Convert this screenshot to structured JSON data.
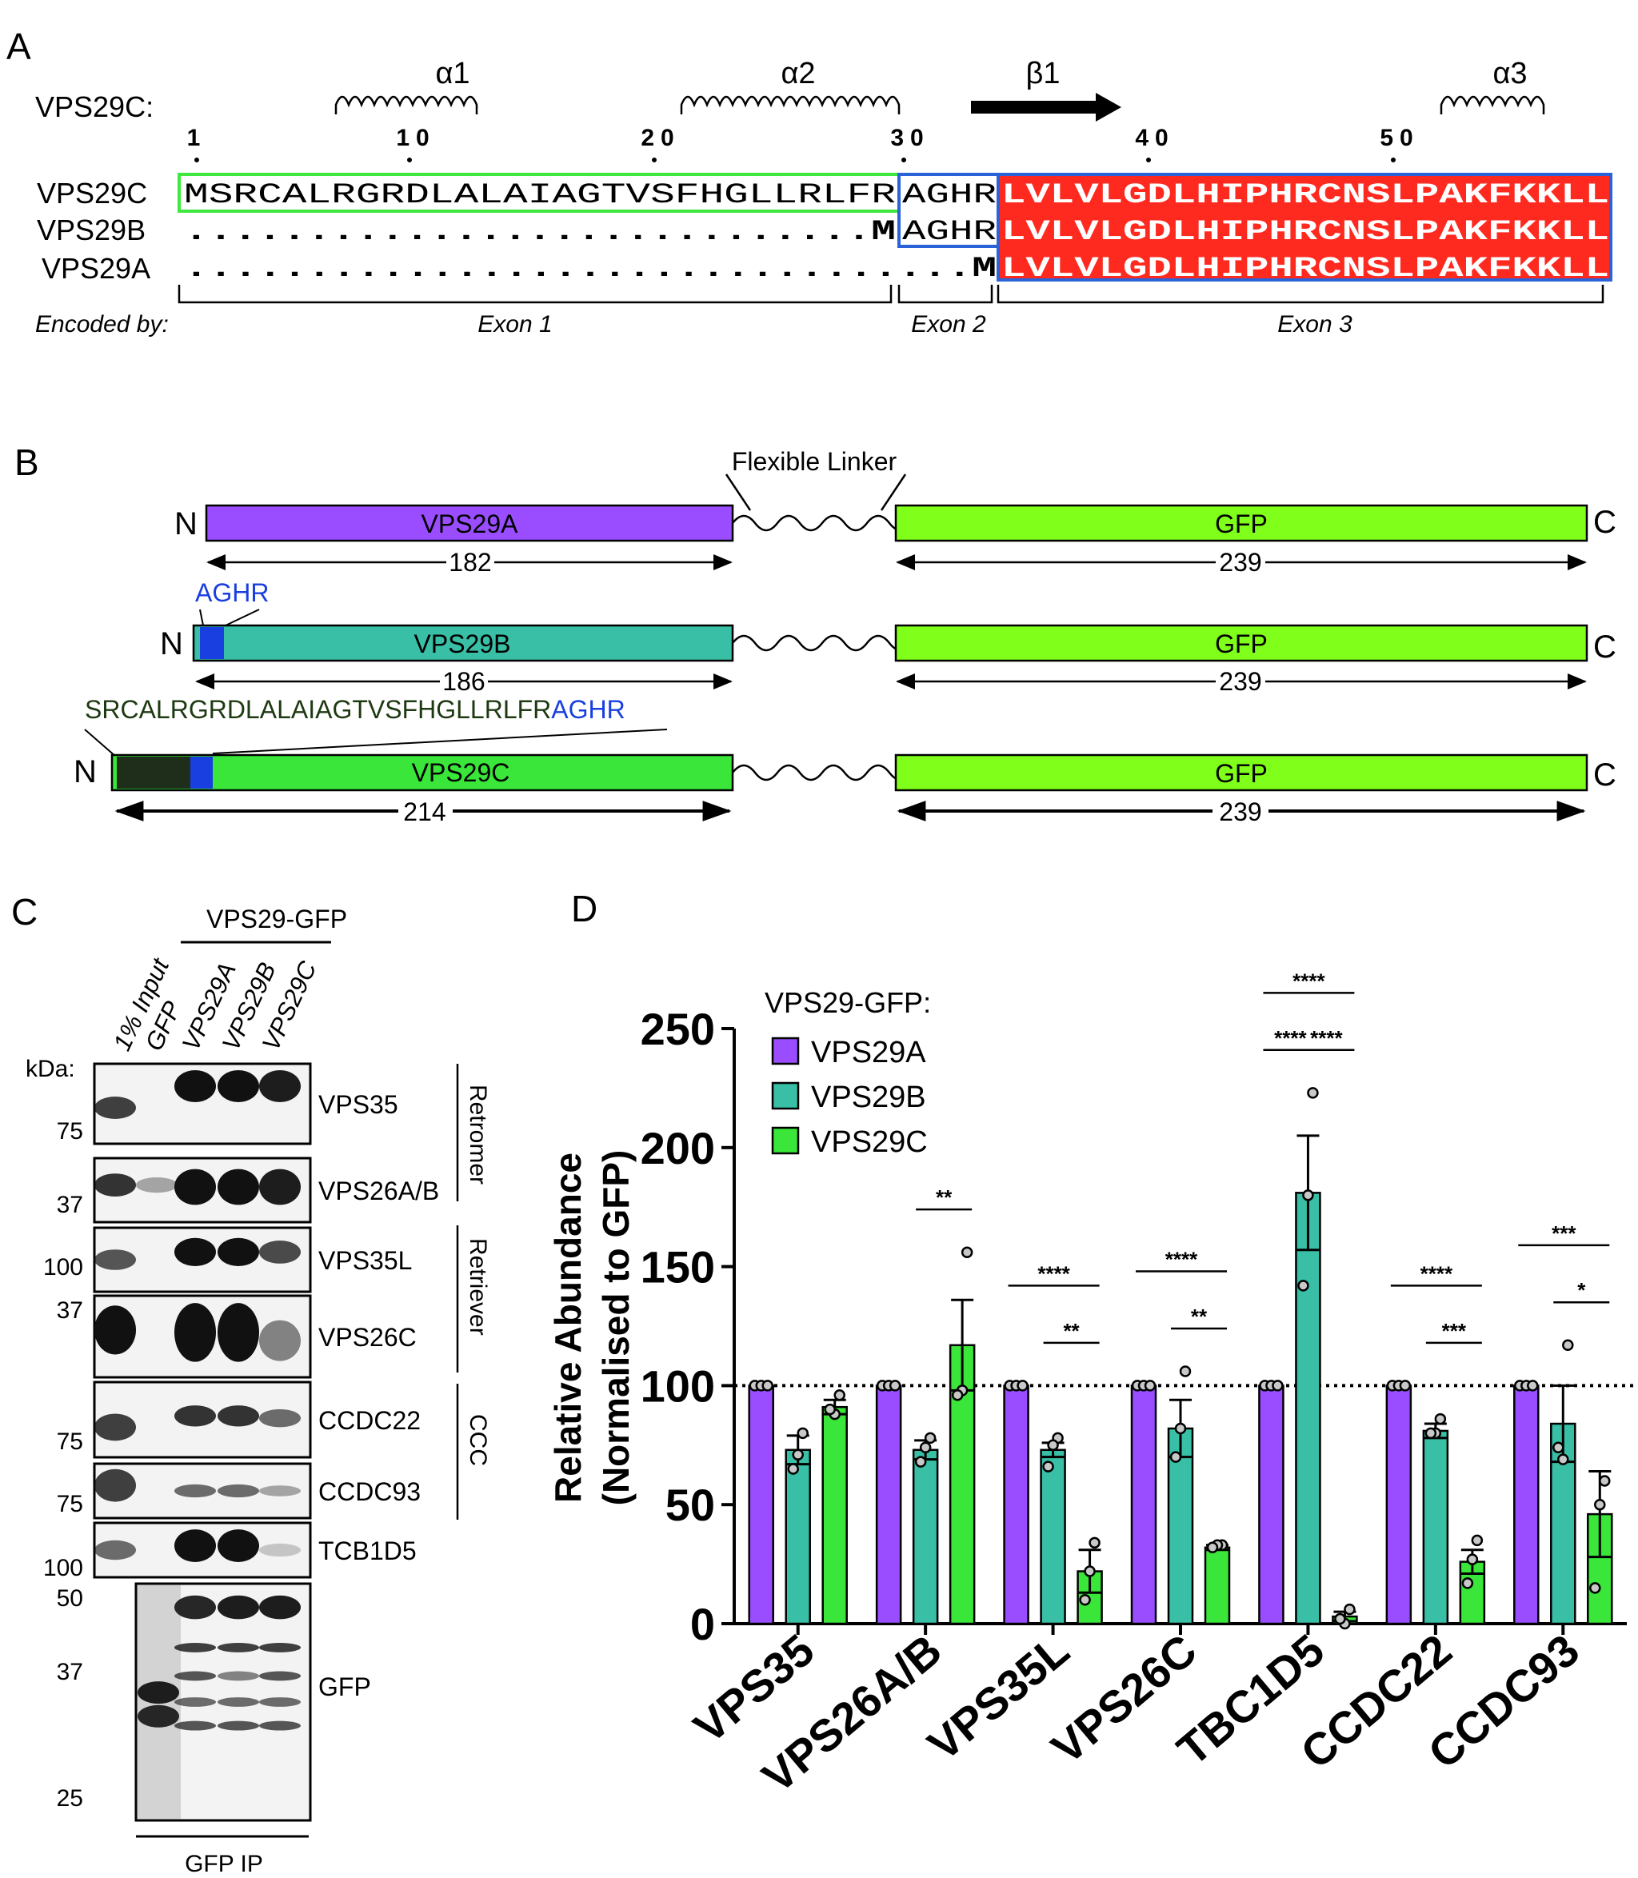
{
  "colors": {
    "purple": "#9a4dff",
    "teal": "#38bfa6",
    "green": "#39e639",
    "gfp": "#7fff1a",
    "blue": "#1a3fe0",
    "red": "#ff2a1f",
    "dark_green": "#1e2e1a",
    "outline_green": "#3ee83e",
    "outline_blue": "#2a62d8"
  },
  "panel_a": {
    "label": "A",
    "row_title": "VPS29C:",
    "structure": [
      {
        "name": "α1",
        "kind": "helix"
      },
      {
        "name": "α2",
        "kind": "helix"
      },
      {
        "name": "β1",
        "kind": "strand"
      },
      {
        "name": "α3",
        "kind": "helix"
      }
    ],
    "positions": [
      "1",
      "10",
      "20",
      "30",
      "40",
      "50"
    ],
    "rows": [
      {
        "name": "VPS29C",
        "exon1": "MSRCALRGRDLALAIAGTVSFHGLLRLFR",
        "exon2": "AGHR",
        "exon3": "LVLVLGDLHIPHRCNSLPAKFKKLL"
      },
      {
        "name": "VPS29B",
        "exon1": "............................M",
        "exon2": "AGHR",
        "exon3": "LVLVLGDLHIPHRCNSLPAKFKKLL"
      },
      {
        "name": "VPS29A",
        "exon1": "................................M",
        "exon2": "",
        "exon3": "LVLVLGDLHIPHRCNSLPAKFKKLL"
      }
    ],
    "encoded_by": "Encoded by:",
    "exons": [
      "Exon 1",
      "Exon 2",
      "Exon 3"
    ]
  },
  "panel_b": {
    "label": "B",
    "linker_label": "Flexible Linker",
    "constructs": [
      {
        "name": "VPS29A",
        "length": "182",
        "insert": ""
      },
      {
        "name": "VPS29B",
        "length": "186",
        "insert": "AGHR"
      },
      {
        "name": "VPS29C",
        "length": "214",
        "insert_prefix": "SRCALRGRDLALAIAGTVSFHGLLRLFR",
        "insert": "AGHR"
      }
    ],
    "gfp_label": "GFP",
    "gfp_length": "239",
    "n_term": "N",
    "c_term": "C"
  },
  "panel_c": {
    "label": "C",
    "header": "VPS29-GFP",
    "lanes": [
      "1% Input",
      "GFP",
      "VPS29A",
      "VPS29B",
      "VPS29C"
    ],
    "kda_label": "kDa:",
    "blots": [
      {
        "protein": "VPS35",
        "markers": [
          "75"
        ]
      },
      {
        "protein": "VPS26A/B",
        "markers": [
          "37"
        ]
      },
      {
        "protein": "VPS35L",
        "markers": [
          "100"
        ]
      },
      {
        "protein": "VPS26C",
        "markers": [
          "37"
        ]
      },
      {
        "protein": "CCDC22",
        "markers": [
          "75"
        ]
      },
      {
        "protein": "CCDC93",
        "markers": [
          "75"
        ]
      },
      {
        "protein": "TCB1D5",
        "markers": [
          "100"
        ]
      },
      {
        "protein": "GFP",
        "markers": [
          "50",
          "37",
          "25"
        ]
      }
    ],
    "complexes": [
      "Retromer",
      "Retriever",
      "CCC"
    ],
    "footer": "GFP IP"
  },
  "panel_d": {
    "label": "D",
    "legend_title": "VPS29-GFP:",
    "chart_data": {
      "type": "bar",
      "ylabel_line1": "Relative Abundance",
      "ylabel_line2": "(Normalised to GFP)",
      "ylim": [
        0,
        250
      ],
      "yticks": [
        "0",
        "50",
        "100",
        "150",
        "200",
        "250"
      ],
      "reference_line": 100,
      "categories": [
        "VPS35",
        "VPS26A/B",
        "VPS35L",
        "VPS26C",
        "TBC1D5",
        "CCDC22",
        "CCDC93"
      ],
      "series": [
        {
          "name": "VPS29A",
          "values": [
            100,
            100,
            100,
            100,
            100,
            100,
            100
          ],
          "sem": [
            0,
            0,
            0,
            0,
            0,
            0,
            0
          ],
          "points": [
            [
              100,
              100,
              100
            ],
            [
              100,
              100,
              100
            ],
            [
              100,
              100,
              100
            ],
            [
              100,
              100,
              100
            ],
            [
              100,
              100,
              100
            ],
            [
              100,
              100,
              100
            ],
            [
              100,
              100,
              100
            ]
          ]
        },
        {
          "name": "VPS29B",
          "values": [
            73,
            73,
            73,
            82,
            181,
            81,
            84
          ],
          "sem": [
            6,
            4,
            3,
            12,
            24,
            3,
            16
          ],
          "points": [
            [
              80,
              71,
              65
            ],
            [
              78,
              74,
              68
            ],
            [
              78,
              75,
              66
            ],
            [
              106,
              82,
              70
            ],
            [
              223,
              180,
              142
            ],
            [
              86,
              80,
              80
            ],
            [
              117,
              69,
              74
            ]
          ]
        },
        {
          "name": "VPS29C",
          "values": [
            91,
            117,
            22,
            32,
            3,
            26,
            46
          ],
          "sem": [
            3,
            19,
            9,
            1,
            2,
            5,
            18
          ],
          "points": [
            [
              96,
              88,
              90
            ],
            [
              156,
              98,
              96
            ],
            [
              34,
              22,
              10
            ],
            [
              33,
              33,
              32
            ],
            [
              6,
              0,
              2
            ],
            [
              35,
              27,
              17
            ],
            [
              60,
              50,
              15
            ]
          ]
        }
      ],
      "significance": [
        {
          "category": "VPS26A/B",
          "pair": "B-C",
          "label": "**",
          "level": 0
        },
        {
          "category": "VPS35L",
          "pair": "A-C",
          "label": "****",
          "level": 1
        },
        {
          "category": "VPS35L",
          "pair": "B-C",
          "label": "**",
          "level": 0
        },
        {
          "category": "VPS26C",
          "pair": "A-C",
          "label": "****",
          "level": 1
        },
        {
          "category": "VPS26C",
          "pair": "B-C",
          "label": "**",
          "level": 0
        },
        {
          "category": "TBC1D5",
          "pair": "A-B",
          "label": "****",
          "level": 0
        },
        {
          "category": "TBC1D5",
          "pair": "B-C",
          "label": "****",
          "level": 0
        },
        {
          "category": "TBC1D5",
          "pair": "A-C",
          "label": "****",
          "level": 1
        },
        {
          "category": "CCDC22",
          "pair": "A-C",
          "label": "****",
          "level": 1
        },
        {
          "category": "CCDC22",
          "pair": "B-C",
          "label": "***",
          "level": 0
        },
        {
          "category": "CCDC93",
          "pair": "A-C",
          "label": "***",
          "level": 1
        },
        {
          "category": "CCDC93",
          "pair": "B-C",
          "label": "*",
          "level": 0
        }
      ]
    }
  }
}
